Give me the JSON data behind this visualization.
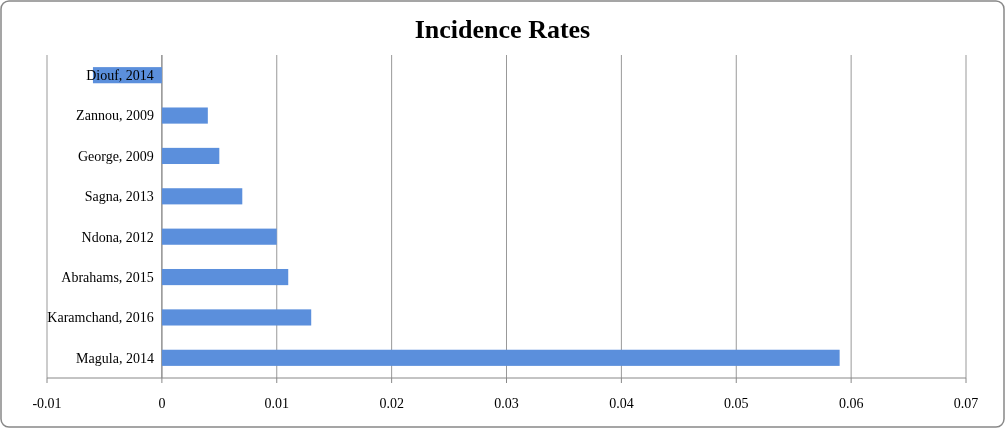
{
  "chart_data": {
    "type": "bar",
    "title": "Incidence Rates",
    "orientation": "horizontal",
    "categories": [
      "Diouf, 2014",
      "Zannou, 2009",
      "George, 2009",
      "Sagna, 2013",
      "Ndona, 2012",
      "Abrahams, 2015",
      "Karamchand, 2016",
      "Magula, 2014"
    ],
    "values": [
      -0.006,
      0.004,
      0.005,
      0.007,
      0.01,
      0.011,
      0.013,
      0.059
    ],
    "color": "#5b8fdc",
    "xlim": [
      -0.01,
      0.07
    ],
    "xticks": [
      -0.01,
      0,
      0.01,
      0.02,
      0.03,
      0.04,
      0.05,
      0.06,
      0.07
    ],
    "grid": "x"
  }
}
